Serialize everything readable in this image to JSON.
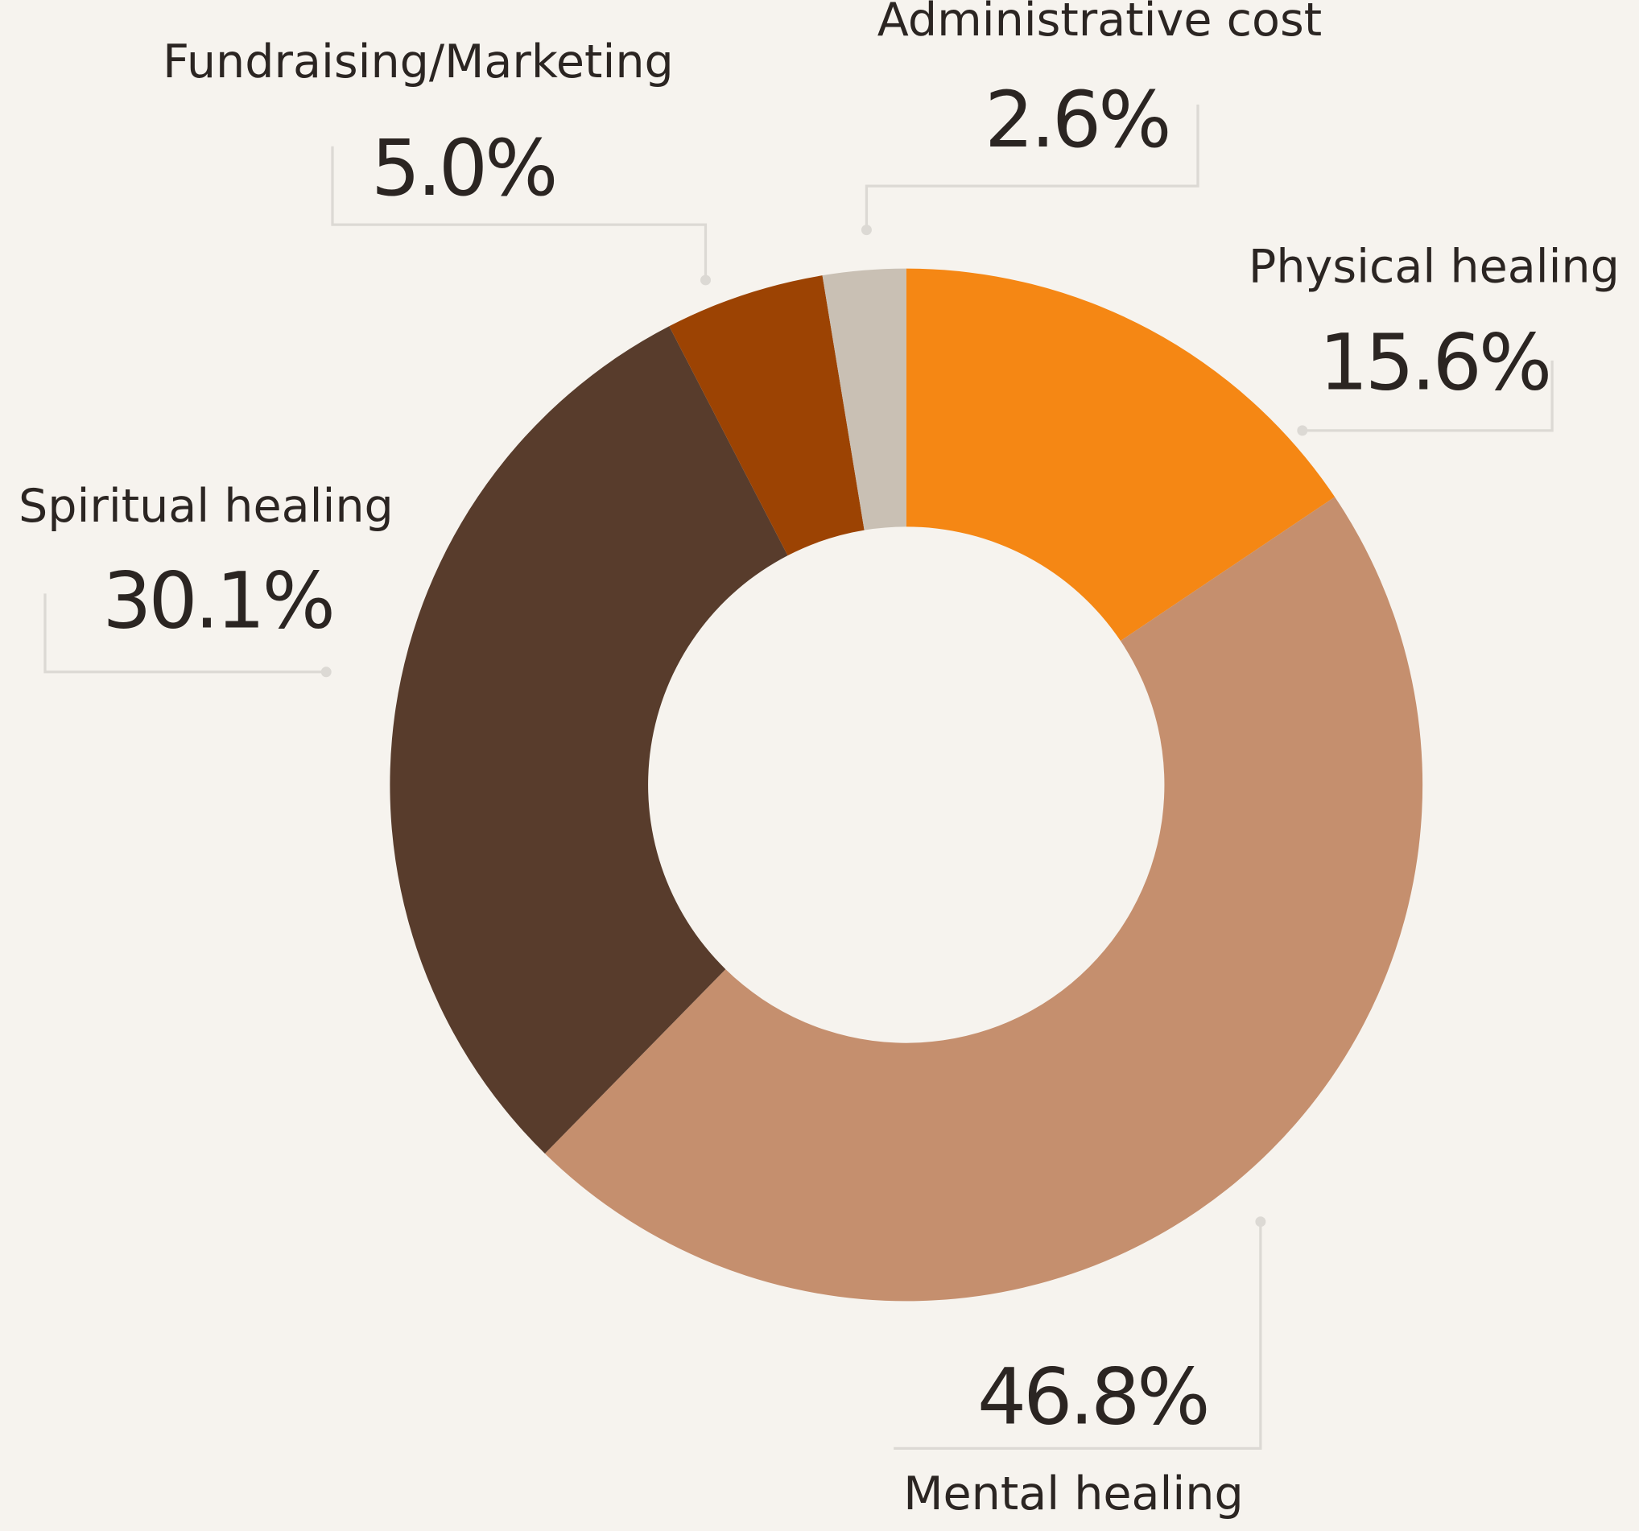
{
  "chart_data": {
    "type": "donut",
    "categories": [
      "Physical healing",
      "Mental healing",
      "Spiritual healing",
      "Fundraising/Marketing",
      "Administrative cost"
    ],
    "values": [
      15.6,
      46.8,
      30.1,
      5.0,
      2.6
    ],
    "value_labels": [
      "15.6%",
      "46.8%",
      "30.1%",
      "5.0%",
      "2.6%"
    ],
    "colors": [
      "#f58714",
      "#c58f6e",
      "#583c2c",
      "#9c4303",
      "#c9c0b4"
    ]
  }
}
